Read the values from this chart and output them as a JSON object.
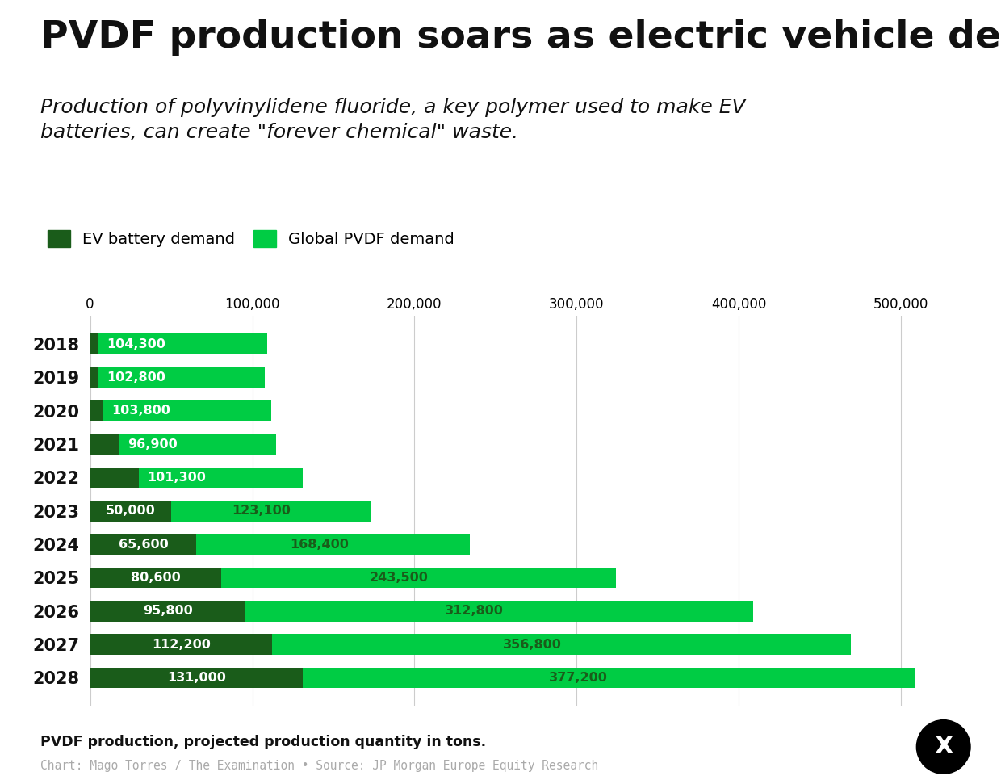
{
  "title": "PVDF production soars as electric vehicle demand grows",
  "subtitle": "Production of polyvinylidene fluoride, a key polymer used to make EV\nbatteries, can create \"forever chemical\" waste.",
  "years": [
    "2018",
    "2019",
    "2020",
    "2021",
    "2022",
    "2023",
    "2024",
    "2025",
    "2026",
    "2027",
    "2028"
  ],
  "ev_battery": [
    5000,
    5000,
    8000,
    18000,
    30000,
    50000,
    65600,
    80600,
    95800,
    112200,
    131000
  ],
  "global_pvdf": [
    104300,
    102800,
    103800,
    96900,
    101300,
    123100,
    168400,
    243500,
    312800,
    356800,
    377200
  ],
  "ev_color": "#1a5c1a",
  "pvdf_color": "#00cc44",
  "pvdf_label_color_early": "#1a5c1a",
  "pvdf_label_color_late": "#1a5c1a",
  "legend_ev": "EV battery demand",
  "legend_pvdf": "Global PVDF demand",
  "xlabel_note": "PVDF production, projected production quantity in tons.",
  "source": "Chart: Mago Torres / The Examination • Source: JP Morgan Europe Equity Research",
  "xlim": [
    0,
    540000
  ],
  "background_color": "#ffffff",
  "title_fontsize": 34,
  "subtitle_fontsize": 18,
  "bar_label_fontsize": 11.5,
  "ev_labels": [
    "",
    "",
    "",
    "",
    "",
    "50,000",
    "65,600",
    "80,600",
    "95,800",
    "112,200",
    "131,000"
  ],
  "pvdf_labels": [
    "104,300",
    "102,800",
    "103,800",
    "96,900",
    "101,300",
    "123,100",
    "168,400",
    "243,500",
    "312,800",
    "356,800",
    "377,200"
  ]
}
